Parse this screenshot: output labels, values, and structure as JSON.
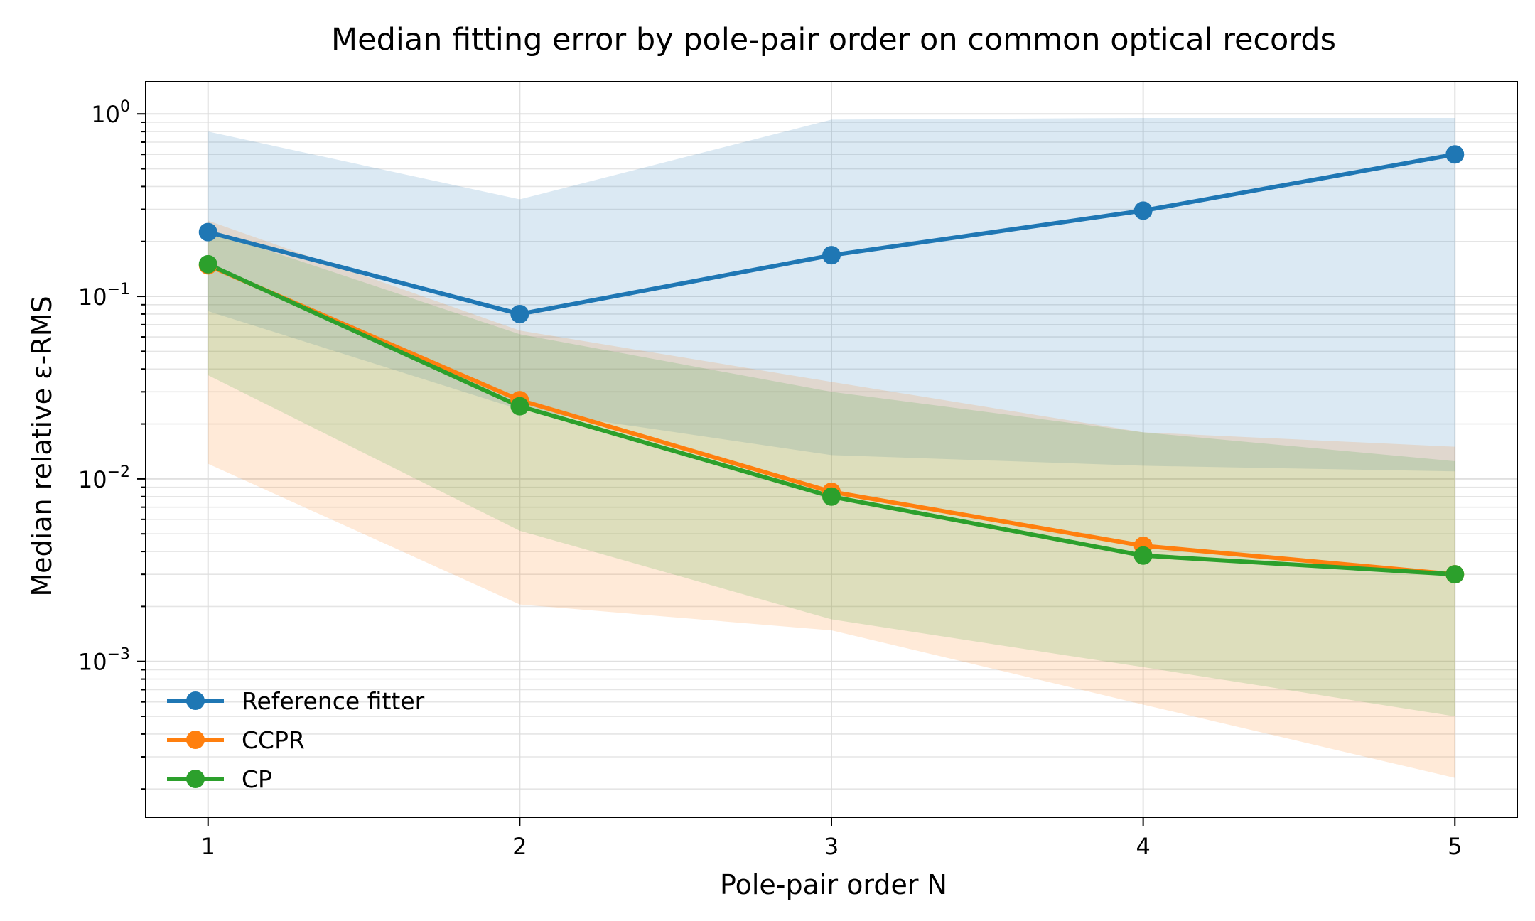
{
  "chart_data": {
    "type": "line",
    "title": "Median fitting error by pole-pair order on common optical records",
    "xlabel": "Pole-pair order N",
    "ylabel": "Median relative ε-RMS",
    "yscale": "log",
    "xlim": [
      0.8,
      5.2
    ],
    "ylim": [
      0.00014,
      1.5
    ],
    "x": [
      1,
      2,
      3,
      4,
      5
    ],
    "x_tick_labels": [
      "1",
      "2",
      "3",
      "4",
      "5"
    ],
    "y_ticks": [
      {
        "base": "10",
        "exp": "−3",
        "value": 0.001
      },
      {
        "base": "10",
        "exp": "−2",
        "value": 0.01
      },
      {
        "base": "10",
        "exp": "−1",
        "value": 0.1
      },
      {
        "base": "10",
        "exp": "0",
        "value": 1
      }
    ],
    "grid": true,
    "legend_position": "bottom-left",
    "series": [
      {
        "name": "Reference fitter",
        "color": "#1f77b4",
        "values": [
          0.225,
          0.08,
          0.168,
          0.295,
          0.6
        ],
        "band_lower": [
          0.083,
          0.024,
          0.0135,
          0.0118,
          0.011
        ],
        "band_upper": [
          0.8,
          0.34,
          0.93,
          0.95,
          0.95
        ]
      },
      {
        "name": "CCPR",
        "color": "#ff7f0e",
        "values": [
          0.148,
          0.027,
          0.0085,
          0.0043,
          0.003
        ],
        "band_lower": [
          0.0121,
          0.00205,
          0.00148,
          0.00058,
          0.00023
        ],
        "band_upper": [
          0.26,
          0.065,
          0.034,
          0.018,
          0.015
        ]
      },
      {
        "name": "CP",
        "color": "#2ca02c",
        "values": [
          0.15,
          0.025,
          0.008,
          0.0038,
          0.003
        ],
        "band_lower": [
          0.037,
          0.0052,
          0.0017,
          0.00093,
          0.0005
        ],
        "band_upper": [
          0.23,
          0.062,
          0.03,
          0.018,
          0.0125
        ]
      }
    ]
  }
}
